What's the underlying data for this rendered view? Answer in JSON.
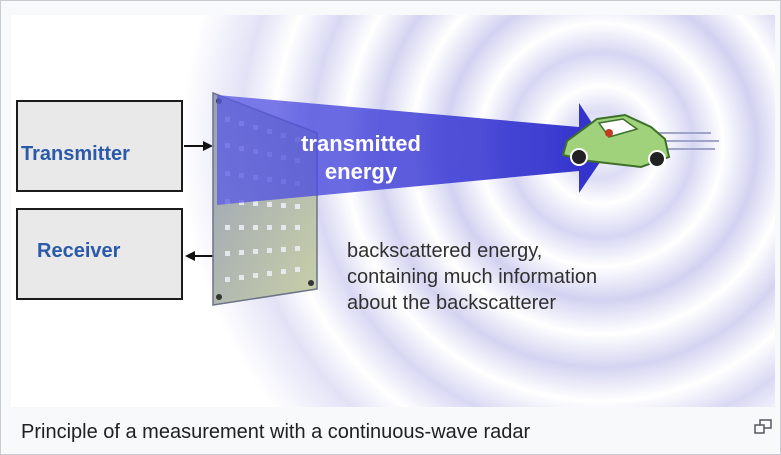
{
  "figure": {
    "transmitter_label": "Transmitter",
    "receiver_label": "Receiver",
    "beam_label_line1": "transmitted",
    "beam_label_line2": "energy",
    "backscatter_line1": "backscattered energy,",
    "backscatter_line2": "containing much information",
    "backscatter_line3": "about the backscatterer"
  },
  "caption": {
    "text": "Principle of a measurement with a continuous-wave radar",
    "enlarge_icon": "enlarge-icon"
  },
  "colors": {
    "box_text": "#2a5aa8",
    "beam": "#3f3fd8",
    "waves": "#c8c8ee",
    "car_body": "#9fd27a"
  }
}
